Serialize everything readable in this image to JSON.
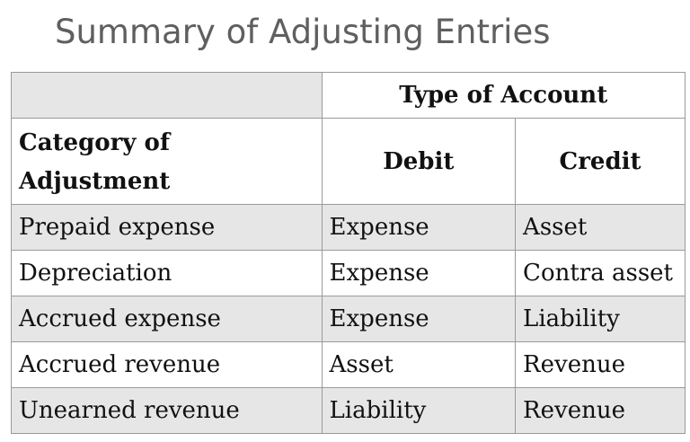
{
  "title": "Summary of Adjusting Entries",
  "table": {
    "group_header": "Type of Account",
    "headers": {
      "category": "Category of Adjustment",
      "category_line1": "Category of",
      "category_line2": "Adjustment",
      "debit": "Debit",
      "credit": "Credit"
    },
    "rows": [
      {
        "category": "Prepaid expense",
        "debit": "Expense",
        "credit": "Asset"
      },
      {
        "category": "Depreciation",
        "debit": "Expense",
        "credit": "Contra asset"
      },
      {
        "category": "Accrued expense",
        "debit": "Expense",
        "credit": "Liability"
      },
      {
        "category": "Accrued revenue",
        "debit": "Asset",
        "credit": "Revenue"
      },
      {
        "category": "Unearned revenue",
        "debit": "Liability",
        "credit": "Revenue"
      }
    ]
  },
  "colors": {
    "title": "#5f5f5f",
    "shaded_row": "#e6e6e6",
    "border": "#9a9a9a"
  }
}
